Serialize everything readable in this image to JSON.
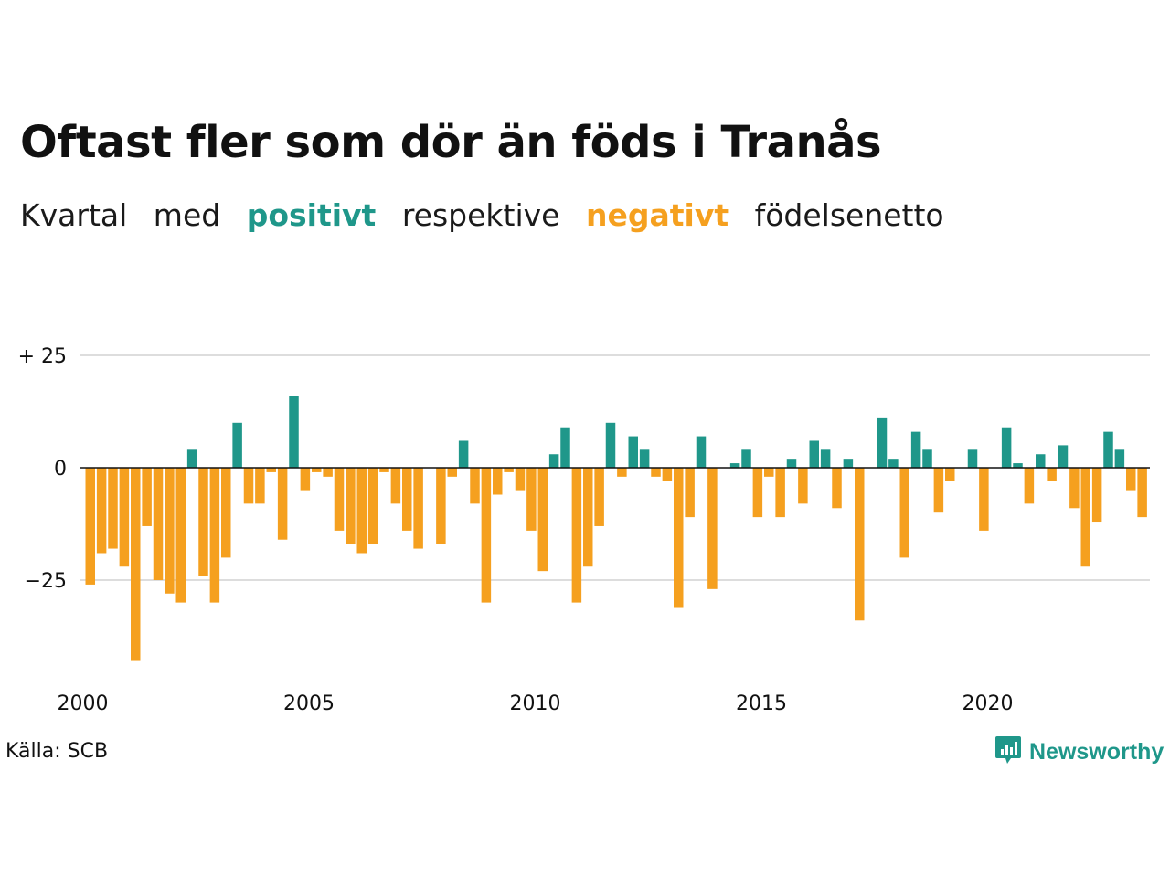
{
  "title": "Oftast fler som dör än föds i Tranås",
  "subtitle": {
    "word1": "Kvartal",
    "word2": "med",
    "positive": "positivt",
    "word3": "respektive",
    "negative": "negativt",
    "word4": "födelsenetto"
  },
  "source": "Källa: SCB",
  "brand": "Newsworthy",
  "colors": {
    "positive": "#1f978a",
    "negative": "#f5a01f",
    "grid": "#dddddd",
    "zero": "#111111"
  },
  "chart_data": {
    "type": "bar",
    "x_start": "2000-Q1",
    "frequency": "quarterly",
    "values": [
      -26,
      -19,
      -18,
      -22,
      -43,
      -13,
      -25,
      -28,
      -30,
      4,
      -24,
      -30,
      -20,
      10,
      -8,
      -8,
      -1,
      -16,
      16,
      -5,
      -1,
      -2,
      -14,
      -17,
      -19,
      -17,
      -1,
      -8,
      -14,
      -18,
      0,
      -17,
      -2,
      6,
      -8,
      -30,
      -6,
      -1,
      -5,
      -14,
      -23,
      3,
      9,
      -30,
      -22,
      -13,
      10,
      -2,
      7,
      4,
      -2,
      -3,
      -31,
      -11,
      7,
      -27,
      0,
      1,
      4,
      -11,
      -2,
      -11,
      2,
      -8,
      6,
      4,
      -9,
      2,
      -34,
      0,
      11,
      2,
      -20,
      8,
      4,
      -10,
      -3,
      0,
      4,
      -14,
      0,
      9,
      1,
      -8,
      3,
      -3,
      5,
      -9,
      -22,
      -12,
      8,
      4,
      -5,
      -11
    ],
    "x_ticks": [
      "2000",
      "2005",
      "2010",
      "2015",
      "2020"
    ],
    "y_ticks": [
      {
        "value": 25,
        "label": "+ 25"
      },
      {
        "value": 0,
        "label": "0"
      },
      {
        "value": -25,
        "label": "−25"
      }
    ],
    "ylim": [
      -48,
      28
    ],
    "xlabel": "",
    "ylabel": "",
    "grid": true
  }
}
